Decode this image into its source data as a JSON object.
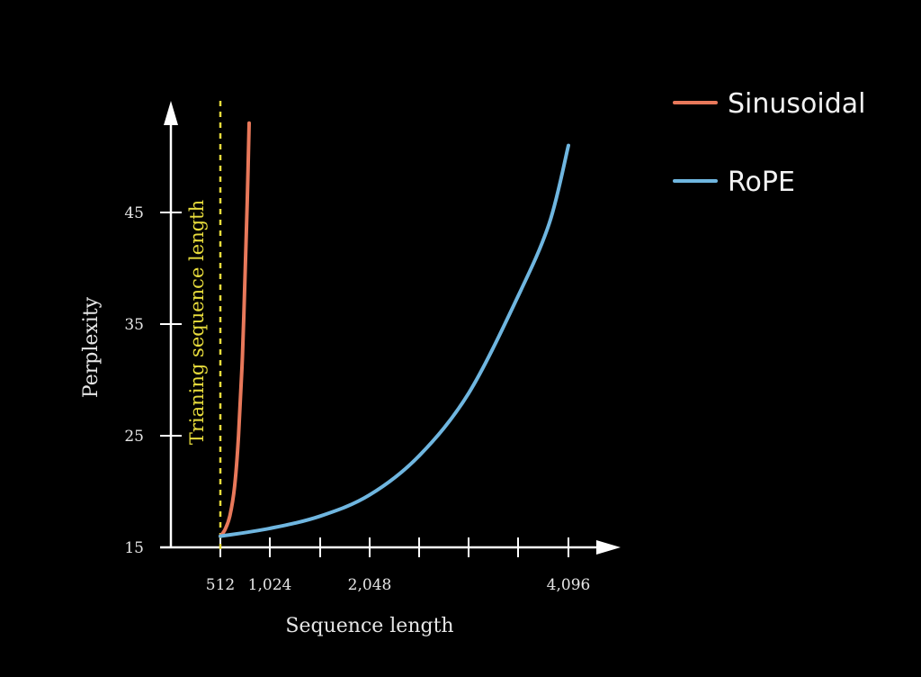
{
  "chart_data": {
    "type": "line",
    "xlabel": "Sequence length",
    "ylabel": "Perplexity",
    "xlim": [
      0,
      4500
    ],
    "ylim": [
      15,
      55
    ],
    "x_ticks": [
      512,
      1024,
      1536,
      2048,
      2560,
      3072,
      3584,
      4096
    ],
    "x_tick_labels": [
      "512",
      "1,024",
      "",
      "2,048",
      "",
      "",
      "",
      "4,096"
    ],
    "y_ticks": [
      15,
      25,
      35,
      45
    ],
    "y_tick_labels": [
      "15",
      "25",
      "35",
      "45"
    ],
    "grid": false,
    "legend_position": "top-right",
    "annotations": [
      {
        "type": "vertical-line",
        "x": 512,
        "label": "Trianing sequence length",
        "style": "dashed",
        "color": "#e8dc3c"
      }
    ],
    "series": [
      {
        "name": "Sinusoidal",
        "color": "#e8785a",
        "points": [
          [
            512,
            16
          ],
          [
            560,
            16.6
          ],
          [
            610,
            17.8
          ],
          [
            660,
            20.5
          ],
          [
            700,
            25
          ],
          [
            740,
            32
          ],
          [
            770,
            40
          ],
          [
            790,
            46
          ],
          [
            810,
            53
          ]
        ]
      },
      {
        "name": "RoPE",
        "color": "#6fb6e0",
        "points": [
          [
            512,
            16
          ],
          [
            1024,
            16.7
          ],
          [
            1536,
            17.8
          ],
          [
            2048,
            19.7
          ],
          [
            2560,
            23.2
          ],
          [
            3072,
            28.8
          ],
          [
            3584,
            37.5
          ],
          [
            3900,
            44
          ],
          [
            4096,
            51
          ]
        ]
      }
    ]
  }
}
